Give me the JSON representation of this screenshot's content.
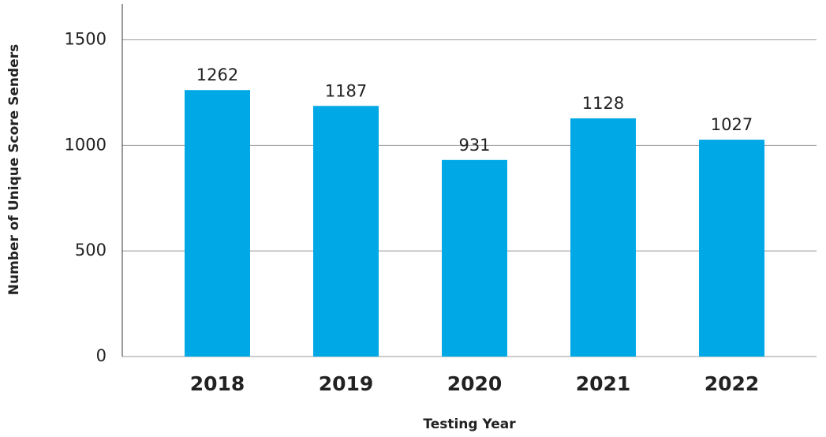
{
  "chart_data": {
    "type": "bar",
    "xlabel": "Testing Year",
    "ylabel": "Number of Unique Score Senders",
    "categories": [
      "2018",
      "2019",
      "2020",
      "2021",
      "2022"
    ],
    "values": [
      1262,
      1187,
      931,
      1128,
      1027
    ],
    "color": "#00a9e6",
    "ylim": [
      0,
      1670
    ],
    "yticks": [
      0,
      500,
      1000,
      1500
    ],
    "grid": true
  }
}
